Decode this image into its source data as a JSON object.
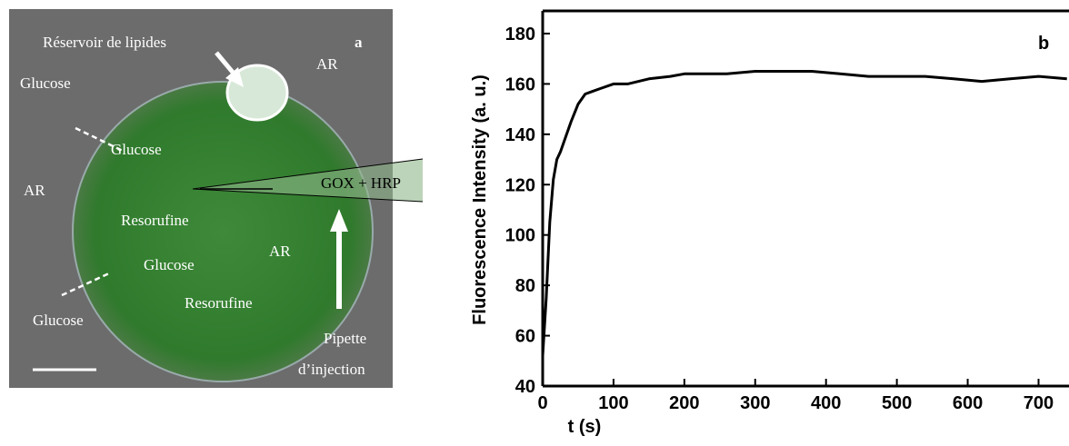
{
  "image": {
    "panel_label": "a",
    "labels": [
      "Réservoir de lipides",
      "AR",
      "Glucose",
      "Glucose",
      "AR",
      "GOX + HRP",
      "Resorufine",
      "AR",
      "Glucose",
      "Resorufine",
      "Glucose",
      "Pipette",
      "d’injection"
    ]
  },
  "chart_data": {
    "type": "line",
    "panel_label": "b",
    "x_label": "t (s)",
    "y_label": "Fluorescence Intensity (a. u.)",
    "x": [
      0,
      5,
      10,
      15,
      20,
      25,
      30,
      40,
      50,
      60,
      70,
      80,
      100,
      120,
      150,
      180,
      200,
      230,
      260,
      300,
      340,
      380,
      420,
      460,
      500,
      540,
      580,
      620,
      660,
      700,
      740
    ],
    "series": [
      {
        "name": "intensity",
        "color": "#000000",
        "values": [
          52,
          75,
          105,
          122,
          130,
          133,
          137,
          145,
          152,
          156,
          157,
          158,
          160,
          160,
          162,
          163,
          164,
          164,
          164,
          165,
          165,
          165,
          164,
          163,
          163,
          163,
          162,
          161,
          162,
          163,
          162
        ]
      }
    ],
    "xlim": [
      0,
      743
    ],
    "ylim": [
      40,
      189
    ],
    "xticks": [
      0,
      100,
      200,
      300,
      400,
      500,
      600,
      700
    ],
    "yticks": [
      40,
      60,
      80,
      100,
      120,
      140,
      160,
      180
    ]
  }
}
